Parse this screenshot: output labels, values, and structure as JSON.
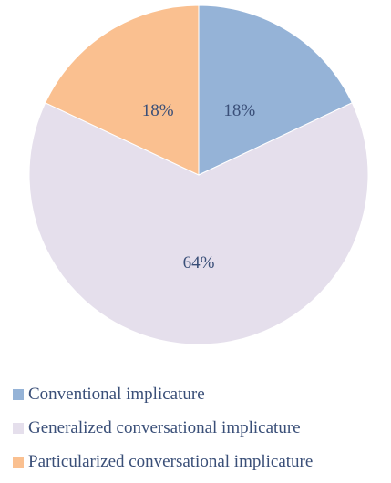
{
  "chart_data": {
    "type": "pie",
    "slices": [
      {
        "label": "Conventional implicature",
        "value": 18,
        "display": "18%",
        "color": "#95b3d7"
      },
      {
        "label": "Generalized conversational implicature",
        "value": 64,
        "display": "64%",
        "color": "#e5dfec"
      },
      {
        "label": "Particularized conversational implicature",
        "value": 18,
        "display": "18%",
        "color": "#fac090"
      }
    ],
    "legend_position": "bottom"
  }
}
